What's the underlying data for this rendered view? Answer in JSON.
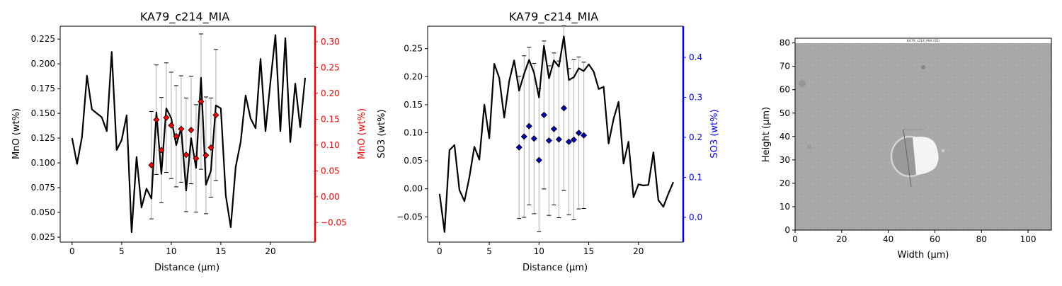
{
  "chart_data": [
    {
      "type": "line",
      "title": "KA79_c214_MIA",
      "xlabel": "Distance (µm)",
      "ylabel": "MnO (wt%)",
      "y2label": "MnO (wt%)",
      "xlim": [
        -1.2,
        24.5
      ],
      "ylim": [
        0.02,
        0.238
      ],
      "y2lim": [
        -0.088,
        0.33
      ],
      "xticks": [
        0,
        5,
        10,
        15,
        20
      ],
      "yticks": [
        0.025,
        0.05,
        0.075,
        0.1,
        0.125,
        0.15,
        0.175,
        0.2,
        0.225
      ],
      "ytick_labels": [
        "0.025",
        "0.050",
        "0.075",
        "0.100",
        "0.125",
        "0.150",
        "0.175",
        "0.200",
        "0.225"
      ],
      "y2ticks": [
        -0.05,
        0.0,
        0.05,
        0.1,
        0.15,
        0.2,
        0.25,
        0.3
      ],
      "y2tick_labels": [
        "−0.05",
        "0.00",
        "0.05",
        "0.10",
        "0.15",
        "0.20",
        "0.25",
        "0.30"
      ],
      "accent_color": "#ff0000",
      "line": {
        "color": "#000000",
        "x": [
          0,
          0.5,
          1,
          1.5,
          2,
          2.5,
          3,
          3.5,
          4,
          4.5,
          5,
          5.5,
          6,
          6.5,
          7,
          7.5,
          8,
          8.5,
          9,
          9.5,
          10,
          10.5,
          11,
          11.5,
          12,
          12.5,
          13,
          13.5,
          14,
          14.5,
          15,
          15.5,
          16,
          16.5,
          17,
          17.5,
          18,
          18.5,
          19,
          19.5,
          20,
          20.5,
          21,
          21.5,
          22,
          22.5,
          23,
          23.5
        ],
        "y": [
          0.125,
          0.099,
          0.126,
          0.188,
          0.154,
          0.15,
          0.146,
          0.132,
          0.212,
          0.113,
          0.123,
          0.148,
          0.03,
          0.106,
          0.055,
          0.074,
          0.064,
          0.151,
          0.089,
          0.155,
          0.145,
          0.118,
          0.135,
          0.072,
          0.125,
          0.095,
          0.186,
          0.078,
          0.092,
          0.158,
          0.155,
          0.067,
          0.035,
          0.096,
          0.121,
          0.168,
          0.145,
          0.135,
          0.205,
          0.132,
          0.182,
          0.229,
          0.132,
          0.226,
          0.121,
          0.18,
          0.136,
          0.186
        ]
      },
      "points": {
        "axis": "right",
        "color": "#ff0000",
        "marker": "diamond",
        "x": [
          8.0,
          8.5,
          9.0,
          9.5,
          10.0,
          10.5,
          11.0,
          11.5,
          12.0,
          12.5,
          13.0,
          13.5,
          14.0,
          14.5
        ],
        "y": [
          0.061,
          0.149,
          0.09,
          0.153,
          0.138,
          0.117,
          0.131,
          0.081,
          0.129,
          0.074,
          0.184,
          0.08,
          0.095,
          0.158
        ],
        "err": [
          0.104,
          0.106,
          0.102,
          0.106,
          0.103,
          0.098,
          0.103,
          0.11,
          0.104,
          0.104,
          0.131,
          0.113,
          0.096,
          0.127
        ]
      }
    },
    {
      "type": "line",
      "title": "KA79_c214_MIA",
      "xlabel": "Distance (µm)",
      "ylabel": "SO3 (wt%)",
      "y2label": "SO3 (wt%)",
      "xlim": [
        -1.2,
        24.5
      ],
      "ylim": [
        -0.095,
        0.29
      ],
      "y2lim": [
        -0.062,
        0.478
      ],
      "xticks": [
        0,
        5,
        10,
        15,
        20
      ],
      "yticks": [
        -0.05,
        0.0,
        0.05,
        0.1,
        0.15,
        0.2,
        0.25
      ],
      "ytick_labels": [
        "−0.05",
        "0.00",
        "0.05",
        "0.10",
        "0.15",
        "0.20",
        "0.25"
      ],
      "y2ticks": [
        0.0,
        0.1,
        0.2,
        0.3,
        0.4
      ],
      "y2tick_labels": [
        "0.0",
        "0.1",
        "0.2",
        "0.3",
        "0.4"
      ],
      "accent_color": "#0000ff",
      "line": {
        "color": "#000000",
        "x": [
          0,
          0.5,
          1,
          1.5,
          2,
          2.5,
          3,
          3.5,
          4,
          4.5,
          5,
          5.5,
          6,
          6.5,
          7,
          7.5,
          8,
          8.5,
          9,
          9.5,
          10,
          10.5,
          11,
          11.5,
          12,
          12.5,
          13,
          13.5,
          14,
          14.5,
          15,
          15.5,
          16,
          16.5,
          17,
          17.5,
          18,
          18.5,
          19,
          19.5,
          20,
          20.5,
          21,
          21.5,
          22,
          22.5,
          23,
          23.5
        ],
        "y": [
          -0.009,
          -0.077,
          0.069,
          0.078,
          -0.002,
          -0.022,
          0.021,
          0.075,
          0.052,
          0.15,
          0.09,
          0.223,
          0.198,
          0.127,
          0.192,
          0.229,
          0.175,
          0.205,
          0.23,
          0.207,
          0.163,
          0.255,
          0.197,
          0.229,
          0.218,
          0.272,
          0.194,
          0.199,
          0.215,
          0.21,
          0.222,
          0.209,
          0.178,
          0.182,
          0.081,
          0.125,
          0.155,
          0.045,
          0.084,
          -0.015,
          0.008,
          0.006,
          0.007,
          0.065,
          -0.02,
          -0.032,
          -0.009,
          0.012
        ]
      },
      "points": {
        "axis": "right",
        "color": "#0000bb",
        "marker": "diamond",
        "x": [
          8.0,
          8.5,
          9.0,
          9.5,
          10.0,
          10.5,
          11.0,
          11.5,
          12.0,
          12.5,
          13.0,
          13.5,
          14.0,
          14.5
        ],
        "y": [
          0.175,
          0.202,
          0.228,
          0.197,
          0.143,
          0.256,
          0.192,
          0.221,
          0.195,
          0.273,
          0.189,
          0.194,
          0.211,
          0.205
        ],
        "err": [
          0.178,
          0.202,
          0.197,
          0.188,
          0.179,
          0.185,
          0.187,
          0.19,
          0.196,
          0.206,
          0.183,
          0.2,
          0.19,
          0.183
        ]
      }
    },
    {
      "type": "image",
      "title": "KA79_c214_MIA (SE)",
      "xlabel": "Width (µm)",
      "ylabel": "Height (µm)",
      "xlim": [
        0,
        110
      ],
      "ylim": [
        0,
        82
      ],
      "xticks": [
        0,
        20,
        40,
        60,
        80,
        100
      ],
      "yticks": [
        0,
        10,
        20,
        30,
        40,
        50,
        60,
        70,
        80
      ]
    }
  ]
}
